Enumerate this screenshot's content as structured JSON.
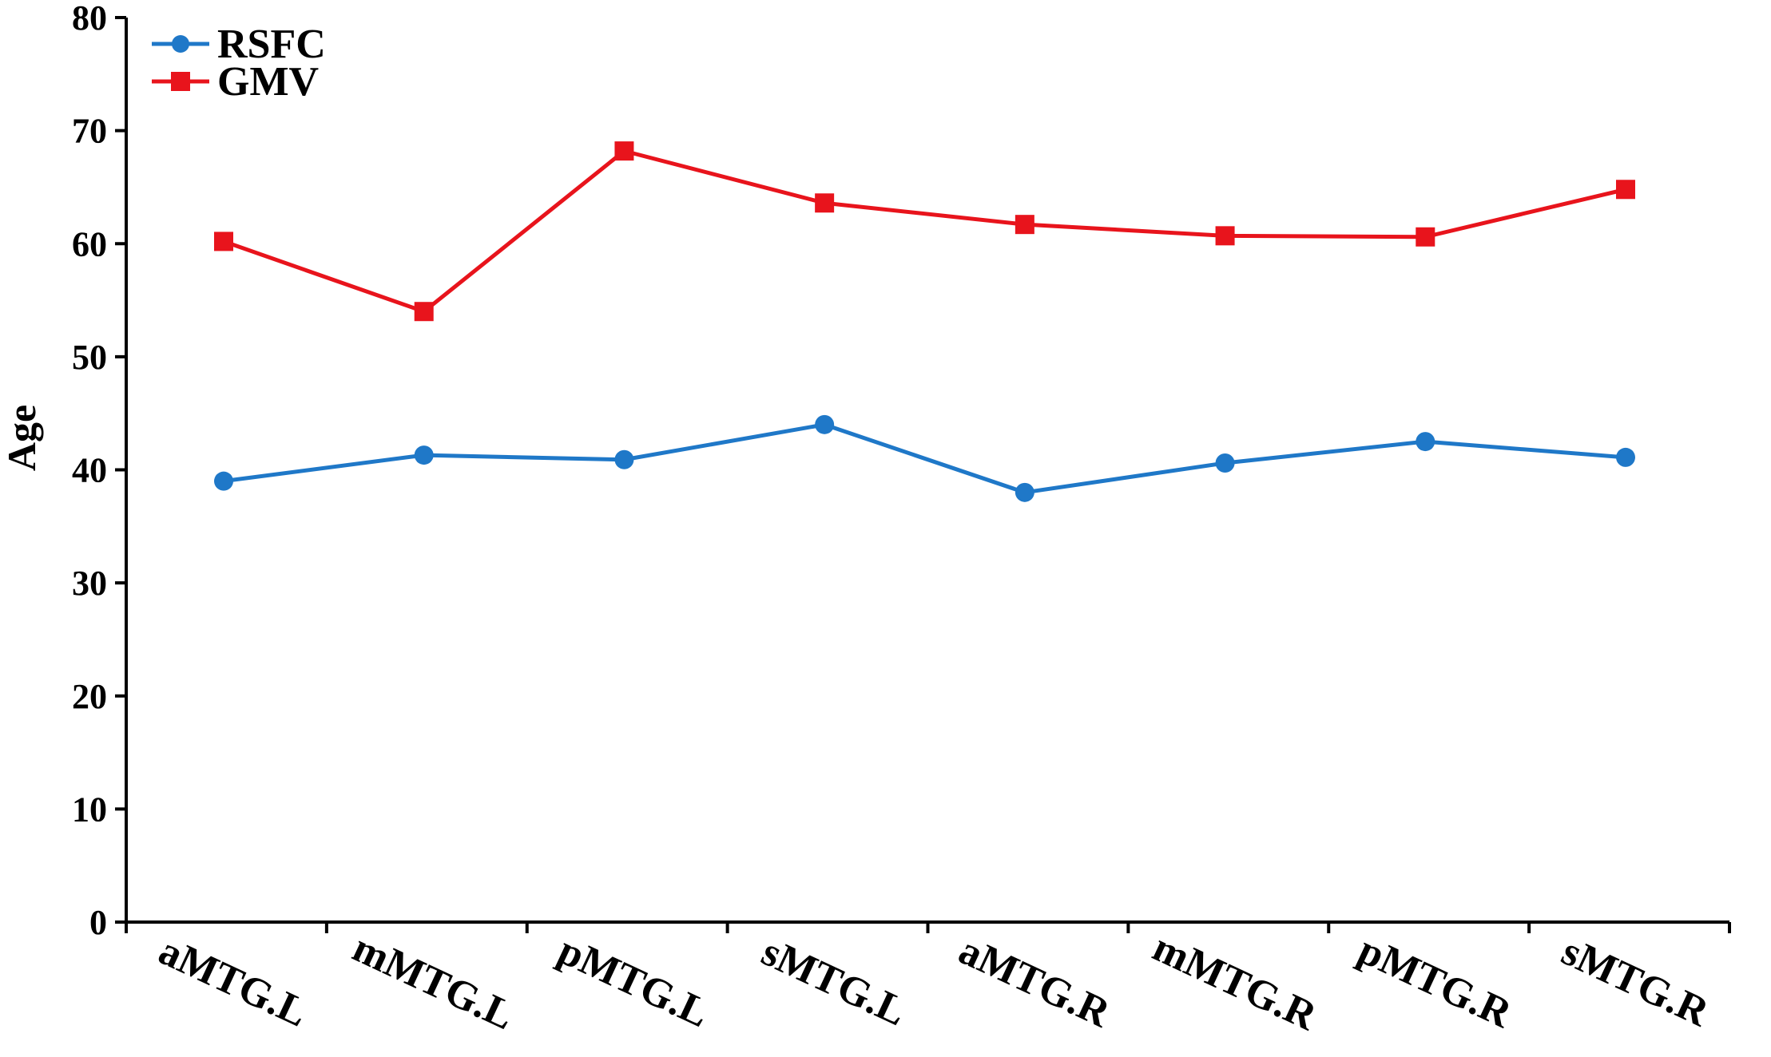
{
  "chart_data": {
    "type": "line",
    "title": "",
    "xlabel": "",
    "ylabel": "Age",
    "ylim": [
      0,
      80
    ],
    "yticks": [
      0,
      10,
      20,
      30,
      40,
      50,
      60,
      70,
      80
    ],
    "categories": [
      "aMTG.L",
      "mMTG.L",
      "pMTG.L",
      "sMTG.L",
      "aMTG.R",
      "mMTG.R",
      "pMTG.R",
      "sMTG.R"
    ],
    "series": [
      {
        "name": "RSFC",
        "color": "#1f78c8",
        "marker": "circle",
        "values": [
          39.0,
          41.3,
          40.9,
          44.0,
          38.0,
          40.6,
          42.5,
          41.1
        ]
      },
      {
        "name": "GMV",
        "color": "#e8141c",
        "marker": "square",
        "values": [
          60.2,
          54.0,
          68.2,
          63.6,
          61.7,
          60.7,
          60.6,
          64.8
        ]
      }
    ],
    "legend_position": "top-left",
    "grid": false
  }
}
